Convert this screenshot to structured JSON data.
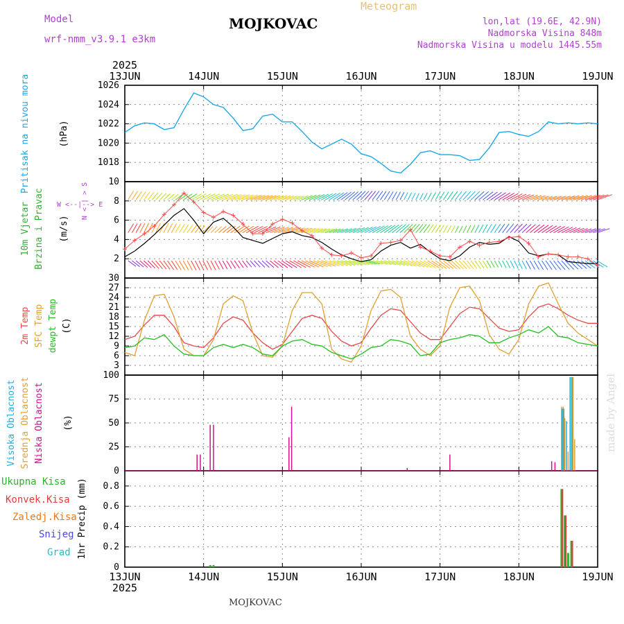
{
  "header": {
    "model_label": "Model",
    "model_name": "wrf-nmm_v3.9.1  e3km",
    "title": "MOJKOVAC",
    "subtitle": "Meteogram",
    "location": "lon,lat (19.6E, 42.9N)",
    "elevation": "Nadmorska Visina 848m",
    "model_elevation": "Nadmorska Visina u modelu 1445.55m"
  },
  "footer": {
    "station": "MOJKOVAC",
    "credit": "made by Angel"
  },
  "x_axis": {
    "year": "2025",
    "day_labels": [
      "13JUN",
      "14JUN",
      "15JUN",
      "16JUN",
      "17JUN",
      "18JUN",
      "19JUN"
    ],
    "range_hours": [
      0,
      144
    ]
  },
  "colors": {
    "pressure": "#1aa8e8",
    "temp2m": "#e84848",
    "sfc": "#e0a030",
    "dew": "#20c020",
    "high": "#18b0e0",
    "mid": "#e0a030",
    "low": "#d0108a",
    "precip_total": "#30b030",
    "precip_conv": "#e83838",
    "precip_frozen": "#e87818",
    "snow": "#4848e8",
    "hail": "#20c0c0",
    "purple": "#b040d0",
    "grid": "#888888"
  },
  "chart_data": [
    {
      "type": "line",
      "id": "pressure",
      "ylabel": "Pritisak na nivou mora",
      "unit": "(hPa)",
      "ylim": [
        1016,
        1026
      ],
      "yticks": [
        1018,
        1020,
        1022,
        1024,
        1026
      ],
      "series": [
        {
          "name": "Pritisak na nivou mora",
          "x": [
            0,
            3,
            6,
            9,
            12,
            15,
            18,
            21,
            24,
            27,
            30,
            33,
            36,
            39,
            42,
            45,
            48,
            51,
            54,
            57,
            60,
            63,
            66,
            69,
            72,
            75,
            78,
            81,
            84,
            87,
            90,
            93,
            96,
            99,
            102,
            105,
            108,
            111,
            114,
            117,
            120,
            123,
            126,
            129,
            132,
            135,
            138,
            141,
            144
          ],
          "values": [
            1021.1,
            1021.8,
            1022.1,
            1022.0,
            1021.4,
            1021.6,
            1023.5,
            1025.2,
            1024.8,
            1024.0,
            1023.7,
            1022.6,
            1021.3,
            1021.5,
            1022.8,
            1023.0,
            1022.2,
            1022.2,
            1021.2,
            1020.1,
            1019.4,
            1019.9,
            1020.4,
            1019.9,
            1018.9,
            1018.6,
            1017.9,
            1017.1,
            1016.9,
            1017.8,
            1019.0,
            1019.2,
            1018.8,
            1018.8,
            1018.7,
            1018.2,
            1018.3,
            1019.5,
            1021.1,
            1021.2,
            1020.9,
            1020.7,
            1021.2,
            1022.2,
            1022.0,
            1022.1,
            1022.0,
            1022.1,
            1022.0
          ]
        }
      ]
    },
    {
      "type": "line",
      "id": "wind",
      "ylabel": "10m Vjetar Brzina i Pravac",
      "unit": "(m/s)",
      "compass": "N\n<\n|\n>\nS",
      "compass_we": "W  <--|-->  E",
      "ylim": [
        0,
        10
      ],
      "yticks": [
        2,
        4,
        6,
        8,
        10
      ],
      "barb_rows": [
        1.8,
        4.7,
        8.1
      ],
      "series": [
        {
          "name": "wind speed",
          "x": [
            0,
            3,
            6,
            9,
            12,
            15,
            18,
            21,
            24,
            27,
            30,
            33,
            36,
            39,
            42,
            45,
            48,
            51,
            54,
            57,
            60,
            63,
            66,
            69,
            72,
            75,
            78,
            81,
            84,
            87,
            90,
            93,
            96,
            99,
            102,
            105,
            108,
            111,
            114,
            117,
            120,
            123,
            126,
            129,
            132,
            135,
            138,
            141,
            144
          ],
          "values": [
            2.2,
            2.8,
            3.6,
            4.5,
            5.5,
            6.5,
            7.2,
            6.0,
            4.6,
            5.8,
            6.2,
            5.3,
            4.2,
            3.9,
            3.6,
            4.1,
            4.6,
            4.8,
            4.4,
            4.2,
            3.7,
            3.0,
            2.4,
            2.0,
            1.7,
            1.9,
            2.8,
            3.4,
            3.7,
            3.1,
            3.5,
            2.7,
            2.0,
            1.8,
            2.3,
            3.2,
            3.7,
            3.5,
            3.6,
            4.3,
            3.8,
            2.6,
            2.3,
            2.5,
            2.4,
            1.7,
            1.6,
            1.5,
            1.5
          ]
        },
        {
          "name": "wind gust",
          "x": [
            0,
            3,
            6,
            9,
            12,
            15,
            18,
            21,
            24,
            27,
            30,
            33,
            36,
            39,
            42,
            45,
            48,
            51,
            54,
            57,
            60,
            63,
            66,
            69,
            72,
            75,
            78,
            81,
            84,
            87,
            90,
            93,
            96,
            99,
            102,
            105,
            108,
            111,
            114,
            117,
            120,
            123,
            126,
            129,
            132,
            135,
            138,
            141,
            144
          ],
          "values": [
            3.0,
            3.9,
            4.6,
            5.4,
            6.6,
            7.6,
            8.8,
            7.9,
            6.8,
            6.3,
            6.9,
            6.5,
            5.6,
            4.6,
            4.6,
            5.6,
            6.1,
            5.7,
            4.9,
            4.4,
            3.1,
            2.4,
            2.3,
            2.6,
            2.1,
            2.3,
            3.6,
            3.7,
            3.9,
            5.0,
            3.2,
            2.8,
            2.3,
            2.2,
            3.2,
            3.8,
            3.4,
            3.7,
            3.8,
            4.2,
            4.3,
            3.6,
            2.2,
            2.5,
            2.4,
            2.2,
            2.2,
            2.0,
            1.3
          ]
        }
      ]
    },
    {
      "type": "line",
      "id": "temperature",
      "ylabel": "2m Temp / SFC Temp / dewpt Temp",
      "unit": "(C)",
      "ylim": [
        0,
        30
      ],
      "yticks": [
        3,
        6,
        9,
        12,
        15,
        18,
        21,
        24,
        27,
        30
      ],
      "series": [
        {
          "name": "2m Temp",
          "x": [
            0,
            3,
            6,
            9,
            12,
            15,
            18,
            21,
            24,
            27,
            30,
            33,
            36,
            39,
            42,
            45,
            48,
            51,
            54,
            57,
            60,
            63,
            66,
            69,
            72,
            75,
            78,
            81,
            84,
            87,
            90,
            93,
            96,
            99,
            102,
            105,
            108,
            111,
            114,
            117,
            120,
            123,
            126,
            129,
            132,
            135,
            138,
            141,
            144
          ],
          "values": [
            11.0,
            12.0,
            15.5,
            18.5,
            18.5,
            15.0,
            10.0,
            9.0,
            8.5,
            11.5,
            16.0,
            18.0,
            17.0,
            13.0,
            10.0,
            8.0,
            9.5,
            13.5,
            17.5,
            18.5,
            17.5,
            13.5,
            10.5,
            9.0,
            10.0,
            14.5,
            18.5,
            20.5,
            20.0,
            16.5,
            13.0,
            11.0,
            11.0,
            15.0,
            19.0,
            21.0,
            20.5,
            17.5,
            14.5,
            13.5,
            14.0,
            18.0,
            21.0,
            22.0,
            20.5,
            18.5,
            17.0,
            16.0,
            16.0
          ]
        },
        {
          "name": "SFC Temp",
          "x": [
            0,
            3,
            6,
            9,
            12,
            15,
            18,
            21,
            24,
            27,
            30,
            33,
            36,
            39,
            42,
            45,
            48,
            51,
            54,
            57,
            60,
            63,
            66,
            69,
            72,
            75,
            78,
            81,
            84,
            87,
            90,
            93,
            96,
            99,
            102,
            105,
            108,
            111,
            114,
            117,
            120,
            123,
            126,
            129,
            132,
            135,
            138,
            141,
            144
          ],
          "values": [
            7.0,
            6.0,
            17.0,
            24.5,
            25.0,
            18.0,
            8.0,
            6.0,
            6.0,
            11.0,
            22.0,
            24.5,
            23.0,
            13.0,
            6.0,
            5.5,
            9.0,
            20.0,
            25.5,
            25.5,
            22.0,
            8.0,
            5.0,
            4.0,
            9.0,
            20.0,
            26.0,
            26.5,
            24.0,
            12.0,
            8.0,
            6.0,
            9.0,
            21.0,
            27.0,
            27.5,
            23.0,
            12.5,
            8.0,
            6.5,
            11.0,
            22.0,
            27.5,
            28.5,
            22.0,
            16.0,
            13.0,
            11.0,
            9.0
          ]
        },
        {
          "name": "dewpt Temp",
          "x": [
            0,
            3,
            6,
            9,
            12,
            15,
            18,
            21,
            24,
            27,
            30,
            33,
            36,
            39,
            42,
            45,
            48,
            51,
            54,
            57,
            60,
            63,
            66,
            69,
            72,
            75,
            78,
            81,
            84,
            87,
            90,
            93,
            96,
            99,
            102,
            105,
            108,
            111,
            114,
            117,
            120,
            123,
            126,
            129,
            132,
            135,
            138,
            141,
            144
          ],
          "values": [
            8.5,
            9.0,
            11.5,
            11.0,
            12.5,
            9.0,
            6.5,
            6.0,
            6.0,
            8.5,
            9.5,
            8.5,
            9.5,
            8.5,
            6.5,
            6.0,
            9.0,
            10.5,
            11.0,
            9.5,
            9.0,
            7.0,
            6.0,
            5.0,
            6.5,
            8.5,
            9.0,
            11.0,
            10.5,
            9.5,
            6.0,
            6.5,
            10.0,
            11.0,
            11.5,
            12.5,
            12.0,
            10.0,
            10.0,
            11.5,
            12.5,
            14.0,
            13.0,
            15.0,
            12.0,
            11.5,
            10.0,
            9.5,
            9.0
          ]
        }
      ]
    },
    {
      "type": "bar",
      "id": "clouds",
      "ylabel": "Visoka Oblacnost / Srednja Oblacnost / Niska Oblacnost",
      "unit": "(%)",
      "ylim": [
        0,
        100
      ],
      "yticks": [
        0,
        25,
        50,
        75,
        100
      ],
      "series": [
        {
          "name": "Niska Oblacnost",
          "x": [
            22,
            23,
            26,
            27,
            50,
            50.8,
            86,
            99,
            130,
            131
          ],
          "values": [
            17,
            17,
            48,
            48,
            35,
            67,
            3,
            17,
            10,
            9
          ]
        },
        {
          "name": "Srednja Oblacnost",
          "x": [
            133,
            133.5,
            134,
            135,
            136,
            136.5,
            137
          ],
          "values": [
            67,
            67,
            55,
            20,
            98,
            98,
            33
          ]
        },
        {
          "name": "Visoka Oblacnost",
          "x": [
            133.2,
            133.7,
            134.5,
            135.6,
            136.2
          ],
          "values": [
            65,
            65,
            52,
            98,
            98
          ]
        }
      ]
    },
    {
      "type": "bar",
      "id": "precip",
      "ylabel": "1hr Precip",
      "unit": "(mm)",
      "ylim": [
        0,
        0.95
      ],
      "yticks": [
        0,
        0.2,
        0.4,
        0.6,
        0.8
      ],
      "legend": [
        "Ukupna Kisa",
        "Konvek.Kisa",
        "Zaledj.Kisa",
        "Snijeg",
        "Grad"
      ],
      "series": [
        {
          "name": "Ukupna Kisa",
          "x": [
            26,
            27,
            133,
            134,
            135,
            136
          ],
          "values": [
            0.02,
            0.02,
            0.77,
            0.51,
            0.14,
            0.26
          ]
        },
        {
          "name": "Konvek.Kisa",
          "x": [
            133.3,
            134.3,
            136.3
          ],
          "values": [
            0.77,
            0.51,
            0.26
          ]
        }
      ]
    }
  ]
}
